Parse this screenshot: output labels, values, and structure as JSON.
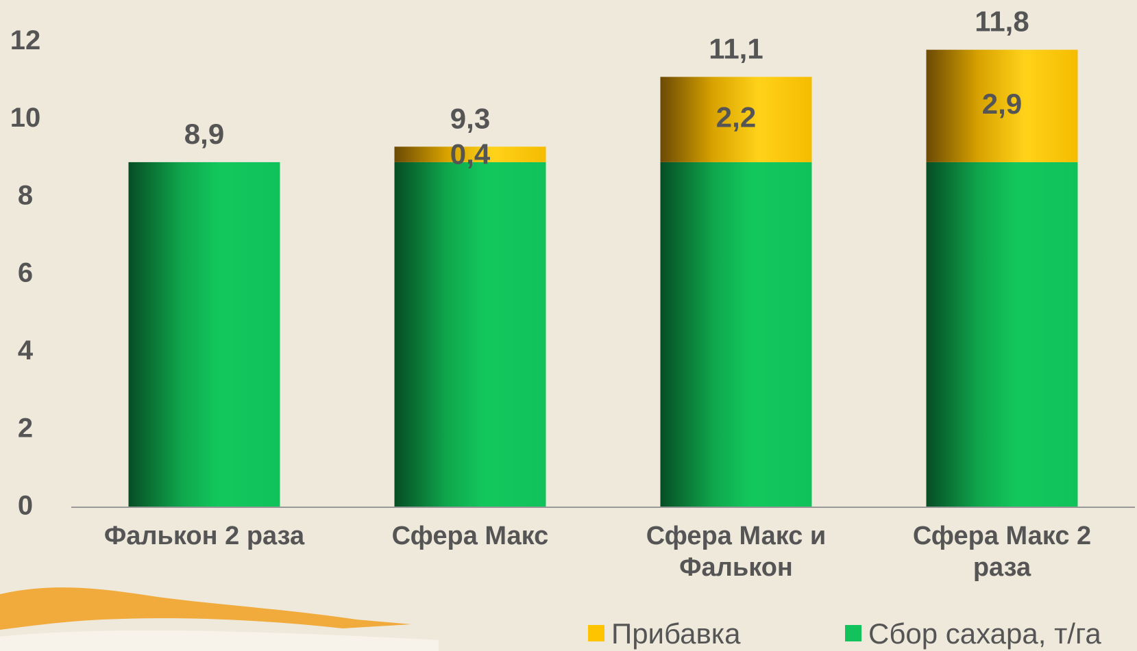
{
  "chart_data": {
    "type": "stacked_bar",
    "categories": [
      "Фалькон 2 раза",
      "Сфера Макс",
      "Сфера Макс и Фалькон",
      "Сфера Макс 2 раза"
    ],
    "series": [
      {
        "name": "Сбор сахара, т/га",
        "color": "#11c35a",
        "values": [
          8.9,
          8.9,
          8.9,
          8.9
        ]
      },
      {
        "name": "Прибавка",
        "color": "#ffc400",
        "values": [
          null,
          0.4,
          2.2,
          2.9
        ],
        "value_labels": [
          null,
          "0,4",
          "2,2",
          "2,9"
        ]
      }
    ],
    "total_labels": [
      "8,9",
      "9,3",
      "11,1",
      "11,8"
    ],
    "ylim": [
      0,
      12.2
    ],
    "yticks": [
      0,
      2,
      4,
      6,
      8,
      10,
      12
    ],
    "grid": false
  }
}
